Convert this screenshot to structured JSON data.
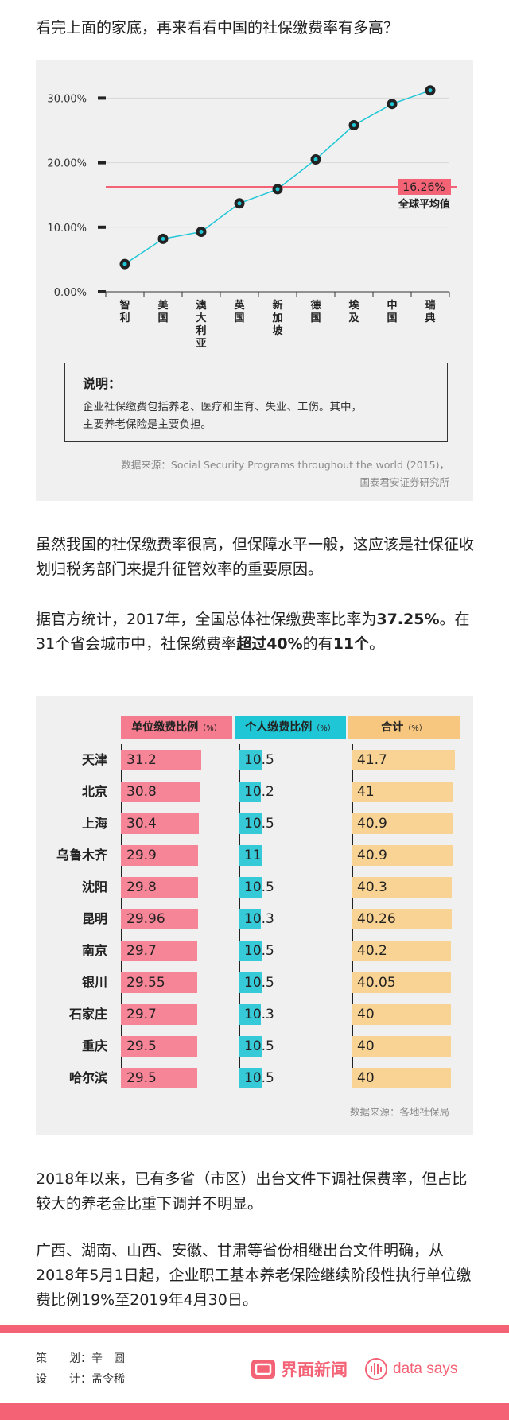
{
  "intro_text": "看完上面的家底，再来看看中国的社保缴费率有多高？",
  "chart_data": {
    "type": "line",
    "categories": [
      "智利",
      "美国",
      "澳大利亚",
      "英国",
      "新加坡",
      "德国",
      "埃及",
      "中国",
      "瑞典"
    ],
    "values": [
      4.3,
      8.2,
      9.3,
      13.7,
      15.9,
      20.5,
      25.8,
      29.1,
      31.2
    ],
    "y_ticks": [
      "0.00%",
      "10.00%",
      "20.00%",
      "30.00%"
    ],
    "ylim": [
      0,
      33
    ],
    "reference_line": {
      "value": 16.26,
      "label": "16.26%",
      "caption": "全球平均值"
    },
    "line_color": "#1fc6d6",
    "ref_color": "#f36275",
    "grid": true
  },
  "chart_note": {
    "title": "说明：",
    "lines": [
      "企业社保缴费包括养老、医疗和生育、失业、工伤。其中，",
      "主要养老保险是主要负担。"
    ]
  },
  "chart_source": {
    "line1": "数据来源：Social Security Programs throughout the world (2015)，",
    "line2": "国泰君安证券研究所"
  },
  "para2": "虽然我国的社保缴费率很高，但保障水平一般，这应该是社保征收划归税务部门来提升征管效率的重要原因。",
  "para3": {
    "part1": "据官方统计，2017年，全国总体社保缴费率比率为",
    "bold1": "37.25%",
    "part2": "。在31个省会城市中，社保缴费率",
    "bold2": "超过40%",
    "part3": "的有",
    "bold3": "11个",
    "part4": "。"
  },
  "table": {
    "headers": [
      {
        "label": "单位缴费比例",
        "unit": "（%）",
        "color": "#f47c8e"
      },
      {
        "label": "个人缴费比例",
        "unit": "（%）",
        "color": "#1fc6d6"
      },
      {
        "label": "合计",
        "unit": "（%）",
        "color": "#f8c77f"
      }
    ],
    "bar_colors": [
      "#f68597",
      "#36c9d7",
      "#f9d394"
    ],
    "rows": [
      {
        "city": "天津",
        "unit": "31.2",
        "personal": "10.5",
        "total": "41.7"
      },
      {
        "city": "北京",
        "unit": "30.8",
        "personal": "10.2",
        "total": "41"
      },
      {
        "city": "上海",
        "unit": "30.4",
        "personal": "10.5",
        "total": "40.9"
      },
      {
        "city": "乌鲁木齐",
        "unit": "29.9",
        "personal": "11",
        "total": "40.9"
      },
      {
        "city": "沈阳",
        "unit": "29.8",
        "personal": "10.5",
        "total": "40.3"
      },
      {
        "city": "昆明",
        "unit": "29.96",
        "personal": "10.3",
        "total": "40.26"
      },
      {
        "city": "南京",
        "unit": "29.7",
        "personal": "10.5",
        "total": "40.2"
      },
      {
        "city": "银川",
        "unit": "29.55",
        "personal": "10.5",
        "total": "40.05"
      },
      {
        "city": "石家庄",
        "unit": "29.7",
        "personal": "10.3",
        "total": "40"
      },
      {
        "city": "重庆",
        "unit": "29.5",
        "personal": "10.5",
        "total": "40"
      },
      {
        "city": "哈尔滨",
        "unit": "29.5",
        "personal": "10.5",
        "total": "40"
      }
    ],
    "source": "数据来源：各地社保局"
  },
  "para4": "2018年以来，已有多省（市区）出台文件下调社保费率，但占比较大的养老金比重下调并不明显。",
  "para5": "广西、湖南、山西、安徽、甘肃等省份相继出台文件明确，从2018年5月1日起，企业职工基本养老保险继续阶段性执行单位缴费比例19%至2019年4月30日。",
  "credits": {
    "planner_label": "策　　划：",
    "planner": "辛　圆",
    "designer_label": "设　　计：",
    "designer": "孟令稀"
  },
  "brand": {
    "name": "界面新闻",
    "tag": "data says",
    "color": "#f36275"
  }
}
